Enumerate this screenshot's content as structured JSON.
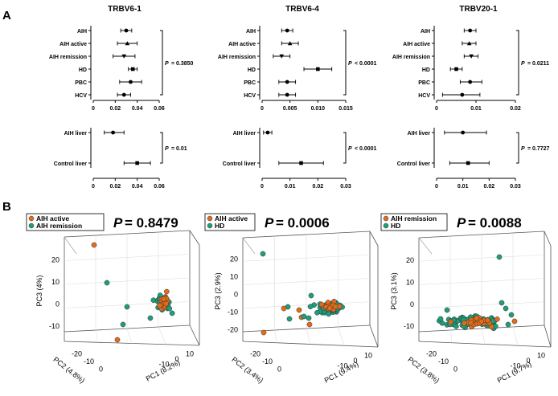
{
  "panels": {
    "a": "A",
    "b": "B"
  },
  "chart_data": [
    {
      "type": "forest",
      "title": "TRBV6-1",
      "categories": [
        "AIH",
        "AIH active",
        "AIH remission",
        "HD",
        "PBC",
        "HCV"
      ],
      "means": [
        0.03,
        0.031,
        0.028,
        0.036,
        0.034,
        0.028
      ],
      "lower": [
        0.025,
        0.022,
        0.018,
        0.032,
        0.024,
        0.022
      ],
      "upper": [
        0.035,
        0.04,
        0.038,
        0.04,
        0.044,
        0.034
      ],
      "markers": [
        "circle",
        "triangle",
        "triangle-down",
        "square",
        "circle",
        "circle"
      ],
      "xlim": [
        0,
        0.06
      ],
      "xticks": [
        "0",
        "0.02",
        "0.04",
        "0.06"
      ],
      "bracket": [
        "AIH",
        "HCV"
      ],
      "p_prefix": "P",
      "p_label": "= 0.3850"
    },
    {
      "type": "forest",
      "title": "TRBV6-4",
      "categories": [
        "AIH",
        "AIH active",
        "AIH remission",
        "HD",
        "PBC",
        "HCV"
      ],
      "means": [
        0.0045,
        0.005,
        0.0035,
        0.01,
        0.0045,
        0.0045
      ],
      "lower": [
        0.0035,
        0.0035,
        0.002,
        0.0075,
        0.003,
        0.003
      ],
      "upper": [
        0.0055,
        0.0065,
        0.005,
        0.0125,
        0.006,
        0.006
      ],
      "markers": [
        "circle",
        "triangle",
        "triangle-down",
        "square",
        "circle",
        "circle"
      ],
      "xlim": [
        0,
        0.015
      ],
      "xticks": [
        "0",
        "0.005",
        "0.010",
        "0.015"
      ],
      "bracket": [
        "AIH",
        "HCV"
      ],
      "p_prefix": "P",
      "p_label": "< 0.0001"
    },
    {
      "type": "forest",
      "title": "TRBV20-1",
      "categories": [
        "AIH",
        "AIH active",
        "AIH remission",
        "HD",
        "PBC",
        "HCV"
      ],
      "means": [
        0.0085,
        0.0083,
        0.0088,
        0.005,
        0.0085,
        0.0065
      ],
      "lower": [
        0.007,
        0.0065,
        0.007,
        0.0035,
        0.006,
        0.0015
      ],
      "upper": [
        0.01,
        0.01,
        0.0105,
        0.0065,
        0.0115,
        0.011
      ],
      "markers": [
        "circle",
        "triangle",
        "triangle-down",
        "square",
        "circle",
        "circle"
      ],
      "xlim": [
        0,
        0.02
      ],
      "xticks": [
        "0",
        "0.01",
        "0.02"
      ],
      "bracket": [
        "AIH",
        "HCV"
      ],
      "p_prefix": "P",
      "p_label": "= 0.0211"
    },
    {
      "type": "forest",
      "title": "",
      "categories": [
        "AIH liver",
        "Control liver"
      ],
      "means": [
        0.018,
        0.04
      ],
      "lower": [
        0.01,
        0.028
      ],
      "upper": [
        0.028,
        0.052
      ],
      "markers": [
        "circle",
        "square"
      ],
      "xlim": [
        0,
        0.06
      ],
      "xticks": [
        "0",
        "0.02",
        "0.04",
        "0.06"
      ],
      "bracket": [
        "AIH liver",
        "Control liver"
      ],
      "p_prefix": "P",
      "p_label": "= 0.01"
    },
    {
      "type": "forest",
      "title": "",
      "categories": [
        "AIH liver",
        "Control liver"
      ],
      "means": [
        0.002,
        0.014
      ],
      "lower": [
        0.0005,
        0.006
      ],
      "upper": [
        0.0035,
        0.022
      ],
      "markers": [
        "circle",
        "square"
      ],
      "xlim": [
        0,
        0.03
      ],
      "xticks": [
        "0",
        "0.01",
        "0.02",
        "0.03"
      ],
      "bracket": [
        "AIH liver",
        "Control liver"
      ],
      "p_prefix": "P",
      "p_label": "< 0.0001"
    },
    {
      "type": "forest",
      "title": "",
      "categories": [
        "AIH liver",
        "Control liver"
      ],
      "means": [
        0.01,
        0.012
      ],
      "lower": [
        0.003,
        0.005
      ],
      "upper": [
        0.019,
        0.02
      ],
      "markers": [
        "circle",
        "square"
      ],
      "xlim": [
        0,
        0.03
      ],
      "xticks": [
        "0",
        "0.01",
        "0.02",
        "0.03"
      ],
      "bracket": [
        "AIH liver",
        "Control liver"
      ],
      "p_prefix": "P",
      "p_label": "= 0.7727"
    },
    {
      "type": "scatter3d",
      "legend": [
        {
          "label": "AIH active",
          "color": "#e36c1a"
        },
        {
          "label": "AIH remission",
          "color": "#1f9e7a"
        }
      ],
      "p_prefix": "P",
      "p_label": "= 0.8479",
      "xlabel": "PC1 (8.2%)",
      "ylabel": "PC2 (4.8%)",
      "zlabel": "PC3 (4%)",
      "xticks": [
        "10",
        "0",
        "-10"
      ],
      "yticks": [
        "-20",
        "-10",
        "0"
      ],
      "zticks": [
        "20",
        "10",
        "0",
        "-10"
      ],
      "x_range": [
        -15,
        12
      ],
      "y_range": [
        -25,
        5
      ],
      "z_range": [
        -15,
        25
      ]
    },
    {
      "type": "scatter3d",
      "legend": [
        {
          "label": "AIH active",
          "color": "#e36c1a"
        },
        {
          "label": "HD",
          "color": "#1f9e7a"
        }
      ],
      "p_prefix": "P",
      "p_label": "= 0.0006",
      "xlabel": "PC1 (9.4%)",
      "ylabel": "PC2 (3.4%)",
      "zlabel": "PC3 (2.9%)",
      "xticks": [
        "10",
        "0",
        "-10"
      ],
      "yticks": [
        "-20",
        "-10",
        "0"
      ],
      "zticks": [
        "20",
        "10",
        "0",
        "-10",
        "-20"
      ],
      "x_range": [
        -15,
        12
      ],
      "y_range": [
        -25,
        5
      ],
      "z_range": [
        -25,
        25
      ]
    },
    {
      "type": "scatter3d",
      "legend": [
        {
          "label": "AIH remission",
          "color": "#e36c1a"
        },
        {
          "label": "HD",
          "color": "#1f9e7a"
        }
      ],
      "p_prefix": "P",
      "p_label": "= 0.0088",
      "xlabel": "PC1 (9.7%)",
      "ylabel": "PC2 (3.8%)",
      "zlabel": "PC3 (3.1%)",
      "xticks": [
        "10",
        "0",
        "-10"
      ],
      "yticks": [
        "-20",
        "-10",
        "0"
      ],
      "zticks": [
        "20",
        "10",
        "0",
        "-10"
      ],
      "x_range": [
        -15,
        12
      ],
      "y_range": [
        -25,
        5
      ],
      "z_range": [
        -15,
        25
      ]
    }
  ]
}
